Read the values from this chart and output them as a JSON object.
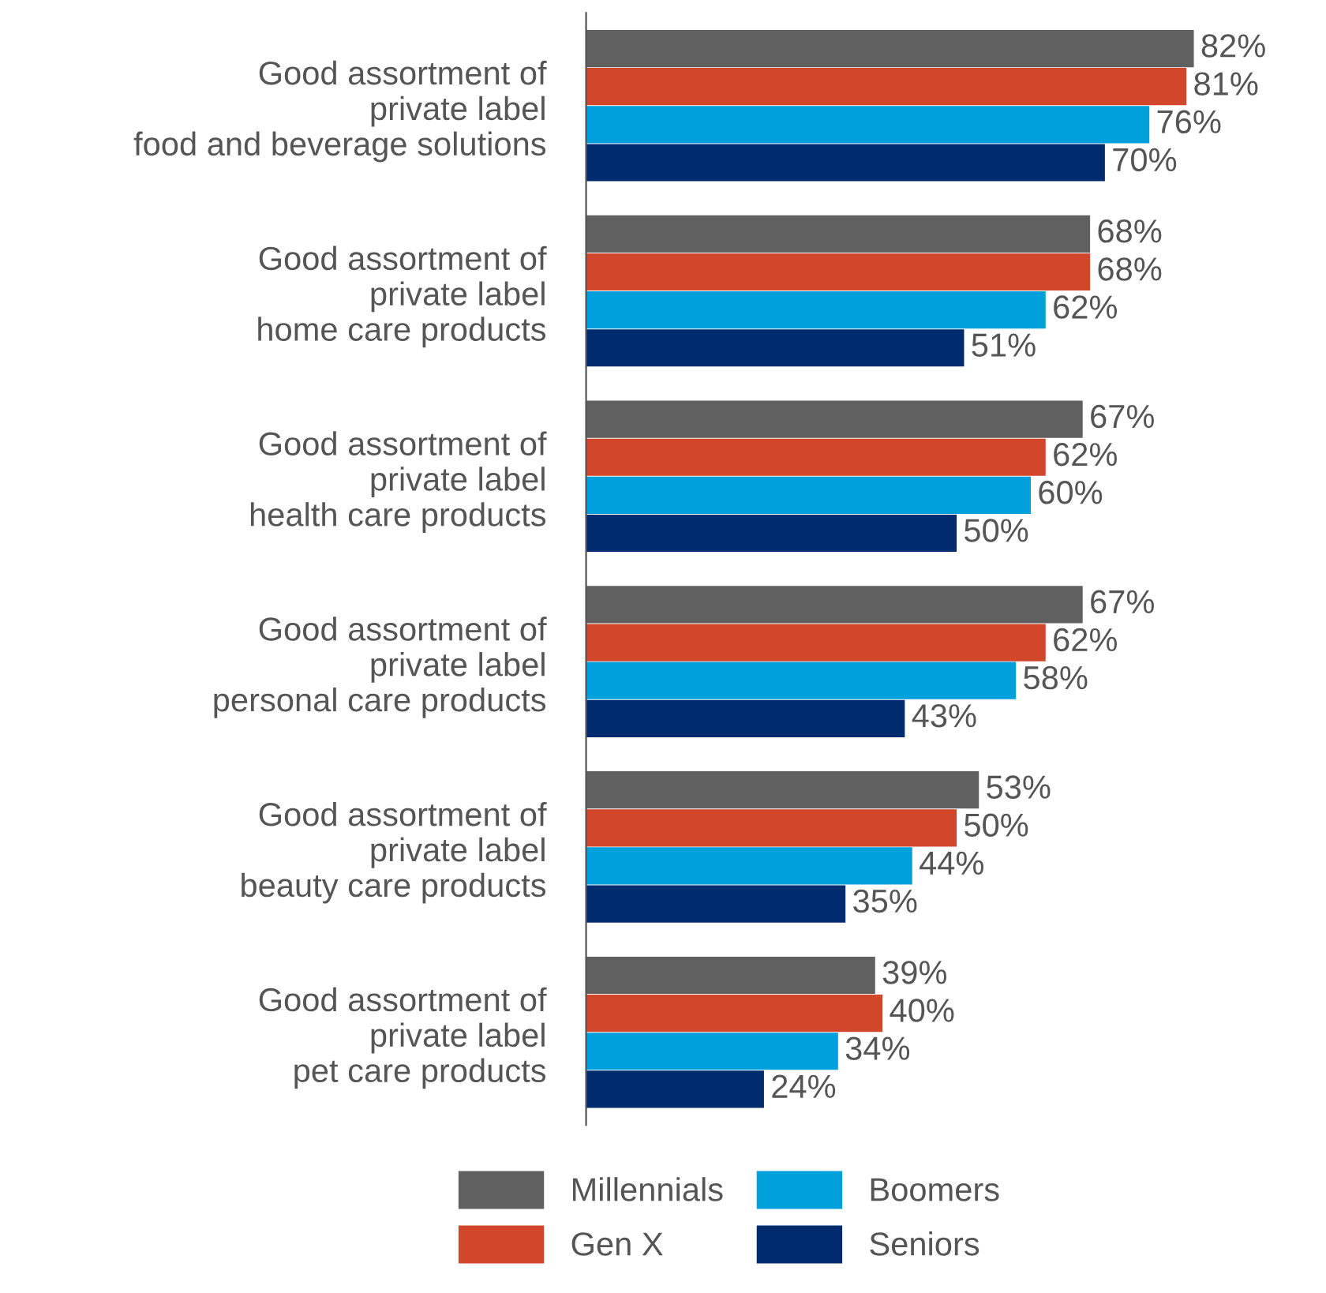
{
  "chart_data": {
    "type": "bar",
    "orientation": "horizontal",
    "legend": "bottom",
    "grid": false,
    "categories": [
      "Good assortment of\nprivate label\nfood and beverage solutions",
      "Good assortment of\nprivate label\nhome care products",
      "Good assortment of\nprivate label\nhealth care products",
      "Good assortment of\nprivate label\npersonal care products",
      "Good assortment of\nprivate label\nbeauty care products",
      "Good assortment of\nprivate label\npet care products"
    ],
    "series": [
      {
        "name": "Millennials",
        "color": "#606060",
        "values": [
          82,
          68,
          67,
          67,
          53,
          39
        ],
        "value_labels": [
          "82%",
          "68%",
          "67%",
          "67%",
          "53%",
          "39%"
        ]
      },
      {
        "name": "Gen X",
        "color": "#d2472b",
        "values": [
          81,
          68,
          62,
          62,
          50,
          40
        ],
        "value_labels": [
          "81%",
          "68%",
          "62%",
          "62%",
          "50%",
          "40%"
        ]
      },
      {
        "name": "Boomers",
        "color": "#00a0dc",
        "values": [
          76,
          62,
          60,
          58,
          44,
          34
        ],
        "value_labels": [
          "76%",
          "62%",
          "60%",
          "58%",
          "44%",
          "34%"
        ]
      },
      {
        "name": "Seniors",
        "color": "#002b6f",
        "values": [
          70,
          51,
          50,
          43,
          35,
          24
        ],
        "value_labels": [
          "70%",
          "51%",
          "50%",
          "43%",
          "35%",
          "24%"
        ]
      }
    ]
  }
}
